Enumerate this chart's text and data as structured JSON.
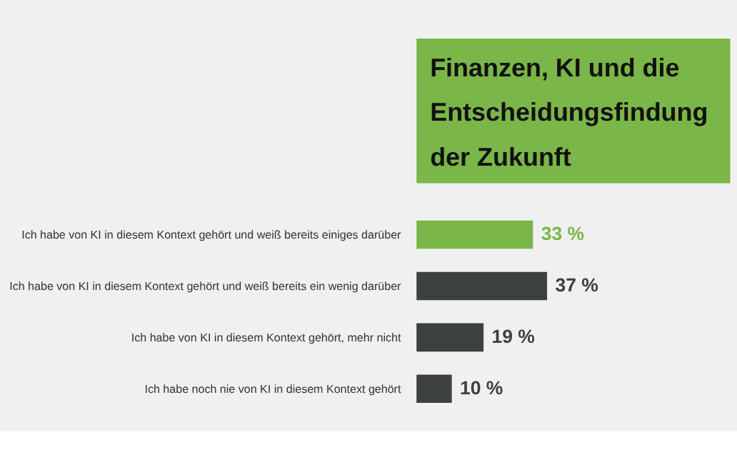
{
  "chart_data": {
    "type": "bar",
    "orientation": "horizontal",
    "title": "Finanzen, KI und die Entscheidungsfindung der Zukunft",
    "categories": [
      "Ich habe von KI in diesem Kontext gehört und weiß bereits einiges darüber",
      "Ich habe von KI in diesem Kontext gehört und weiß bereits ein wenig darüber",
      "Ich habe von KI in diesem Kontext gehört, mehr nicht",
      "Ich habe noch nie von KI in diesem Kontext gehört"
    ],
    "values": [
      33,
      37,
      19,
      10
    ],
    "colors": [
      "#7ab648",
      "#3d4040",
      "#3d4040",
      "#3d4040"
    ],
    "value_labels": [
      "33 %",
      "37 %",
      "19 %",
      "10 %"
    ]
  }
}
